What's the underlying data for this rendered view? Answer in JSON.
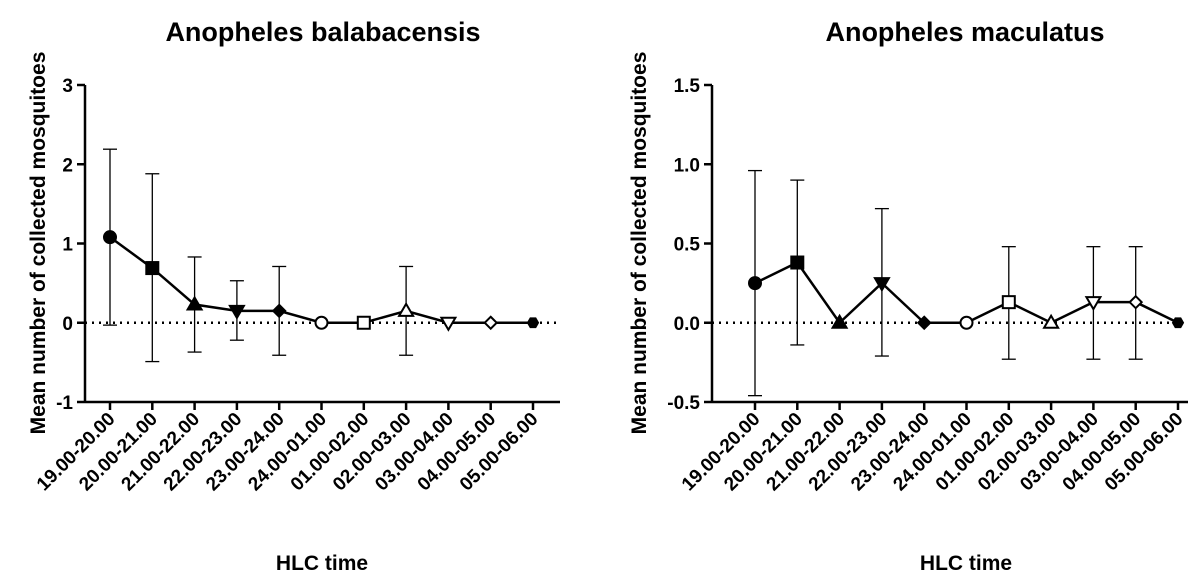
{
  "chart_data": [
    {
      "type": "line",
      "title": "Anopheles balabacensis",
      "xlabel": "HLC time",
      "ylabel": "Mean number of collected mosquitoes",
      "categories": [
        "19.00-20.00",
        "20.00-21.00",
        "21.00-22.00",
        "22.00-23.00",
        "23.00-24.00",
        "24.00-01.00",
        "01.00-02.00",
        "02.00-03.00",
        "03.00-04.00",
        "04.00-05.00",
        "05.00-06.00"
      ],
      "series": [
        {
          "values": [
            1.08,
            0.69,
            0.23,
            0.15,
            0.15,
            0,
            0,
            0.15,
            0,
            0,
            0
          ],
          "error_upper": [
            2.19,
            1.88,
            0.83,
            0.53,
            0.71,
            0,
            0,
            0.71,
            0,
            0,
            0
          ],
          "error_lower": [
            -0.03,
            -0.49,
            -0.37,
            -0.22,
            -0.41,
            0,
            0,
            -0.41,
            0,
            0,
            0
          ],
          "markers": [
            "circle",
            "square",
            "triangle-up",
            "triangle-down",
            "diamond",
            "circle-open",
            "square-open",
            "triangle-up-open",
            "triangle-down-open",
            "diamond-open",
            "hexagon"
          ]
        }
      ],
      "yticks": [
        "-1",
        "0",
        "1",
        "2",
        "3"
      ],
      "ytick_values": [
        -1,
        0,
        1,
        2,
        3
      ],
      "ylim": [
        -1,
        3
      ],
      "reference_line_y": 0,
      "grid": false,
      "colors": {
        "line": "#000000",
        "marker": "#000000"
      }
    },
    {
      "type": "line",
      "title": "Anopheles maculatus",
      "xlabel": "HLC time",
      "ylabel": "Mean number of collected mosquitoes",
      "categories": [
        "19.00-20.00",
        "20.00-21.00",
        "21.00-22.00",
        "22.00-23.00",
        "23.00-24.00",
        "24.00-01.00",
        "01.00-02.00",
        "02.00-03.00",
        "03.00-04.00",
        "04.00-05.00",
        "05.00-06.00"
      ],
      "series": [
        {
          "values": [
            0.25,
            0.38,
            0,
            0.25,
            0,
            0,
            0.13,
            0,
            0.13,
            0.13,
            0
          ],
          "error_upper": [
            0.96,
            0.9,
            0,
            0.72,
            0,
            0,
            0.48,
            0,
            0.48,
            0.48,
            0
          ],
          "error_lower": [
            -0.46,
            -0.14,
            0,
            -0.21,
            0,
            0,
            -0.23,
            0,
            -0.23,
            -0.23,
            0
          ],
          "markers": [
            "circle",
            "square",
            "triangle-up",
            "triangle-down",
            "diamond",
            "circle-open",
            "square-open",
            "triangle-up-open",
            "triangle-down-open",
            "diamond-open",
            "hexagon"
          ]
        }
      ],
      "yticks": [
        "-0.5",
        "0.0",
        "0.5",
        "1.0",
        "1.5"
      ],
      "ytick_values": [
        -0.5,
        0,
        0.5,
        1.0,
        1.5
      ],
      "ylim": [
        -0.5,
        1.5
      ],
      "reference_line_y": 0,
      "grid": false,
      "colors": {
        "line": "#000000",
        "marker": "#000000"
      }
    }
  ]
}
